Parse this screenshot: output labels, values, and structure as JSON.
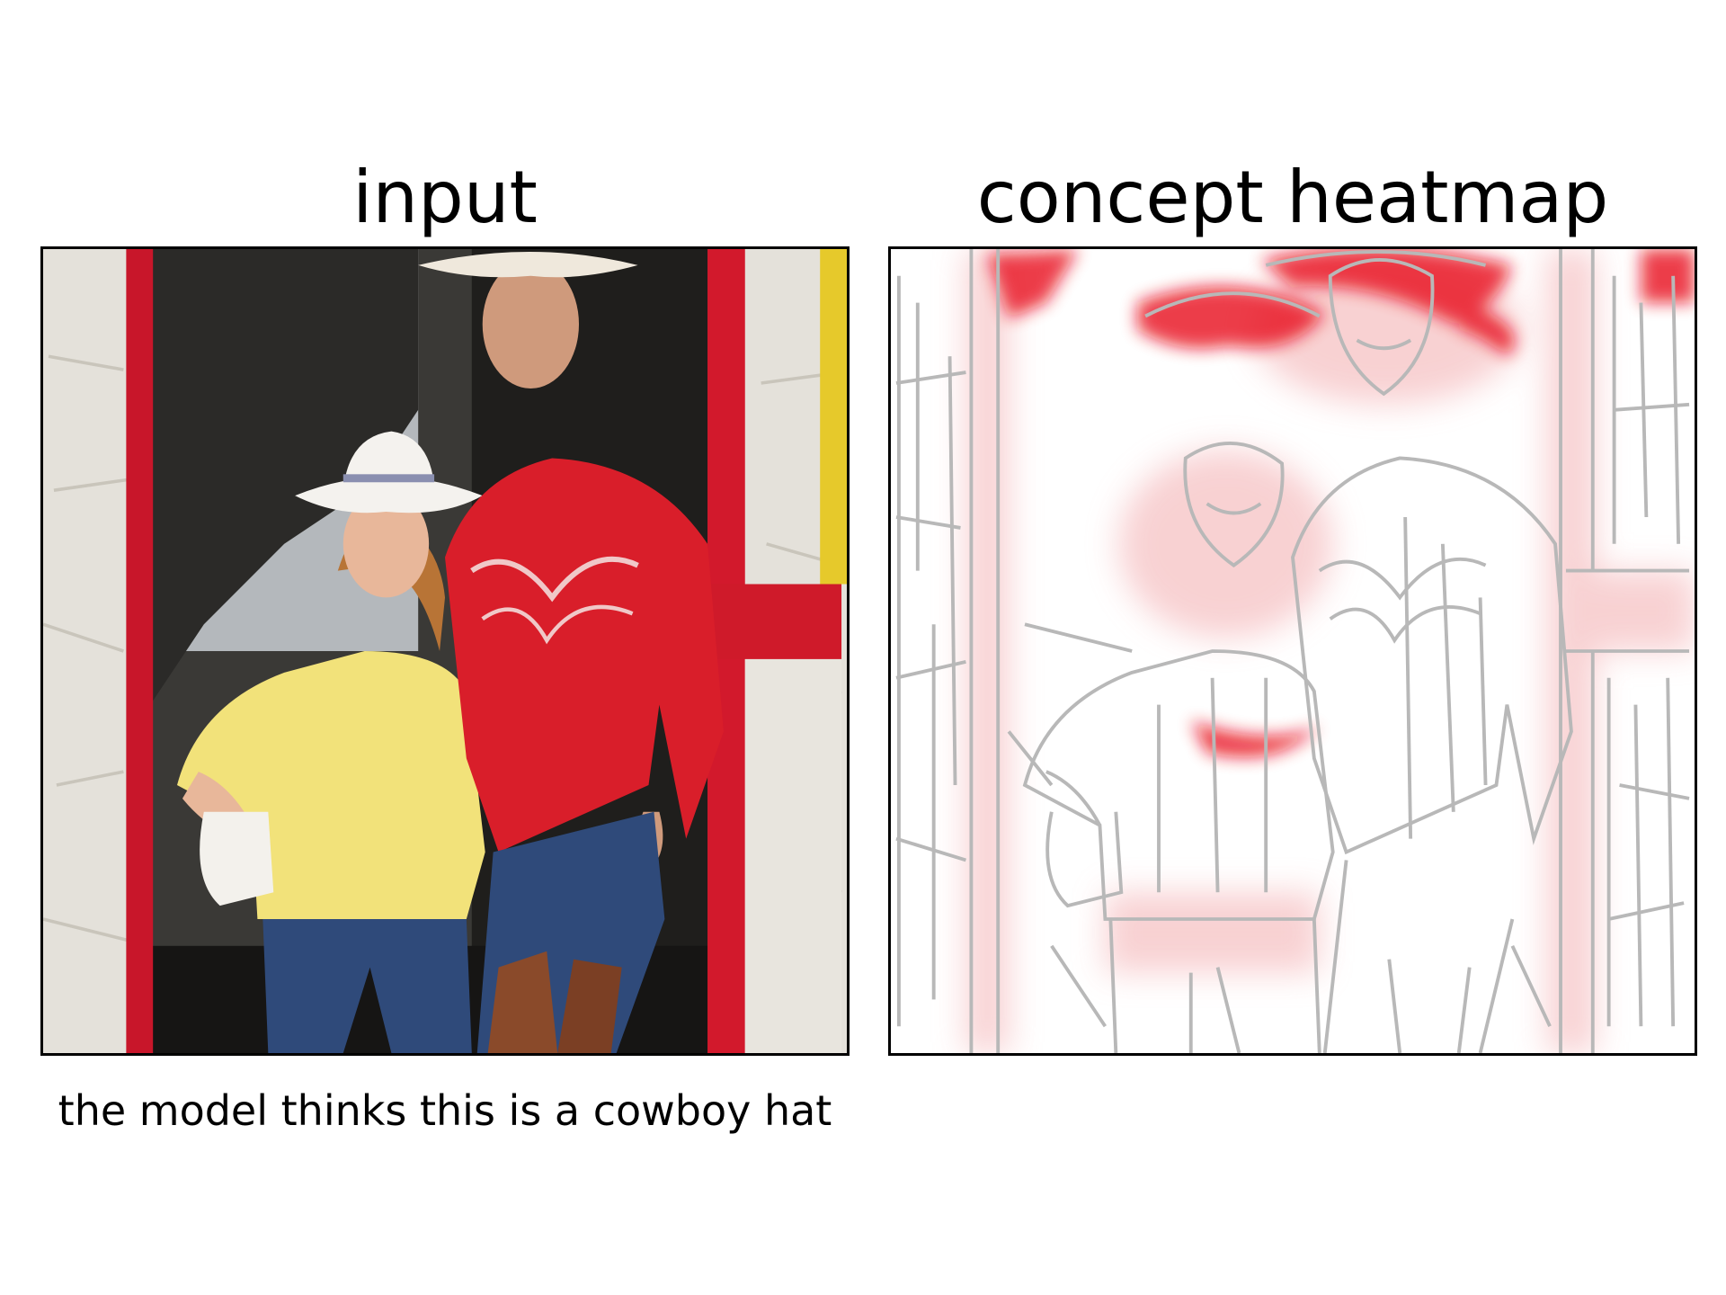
{
  "panels": {
    "input": {
      "title": "input"
    },
    "heatmap": {
      "title": "concept heatmap",
      "highlight_color": "#e8101c"
    }
  },
  "caption": "the model thinks this is a cowboy hat",
  "colors": {
    "frame": "#000000",
    "door_frame": "#c8162a",
    "wall": "#e6e3dc",
    "yellow_shirt": "#f2e27a",
    "red_shirt": "#d91e2a",
    "jeans": "#2f4a7a",
    "hat": "#f4f2ee",
    "edge_lines": "#b8b8b8"
  }
}
